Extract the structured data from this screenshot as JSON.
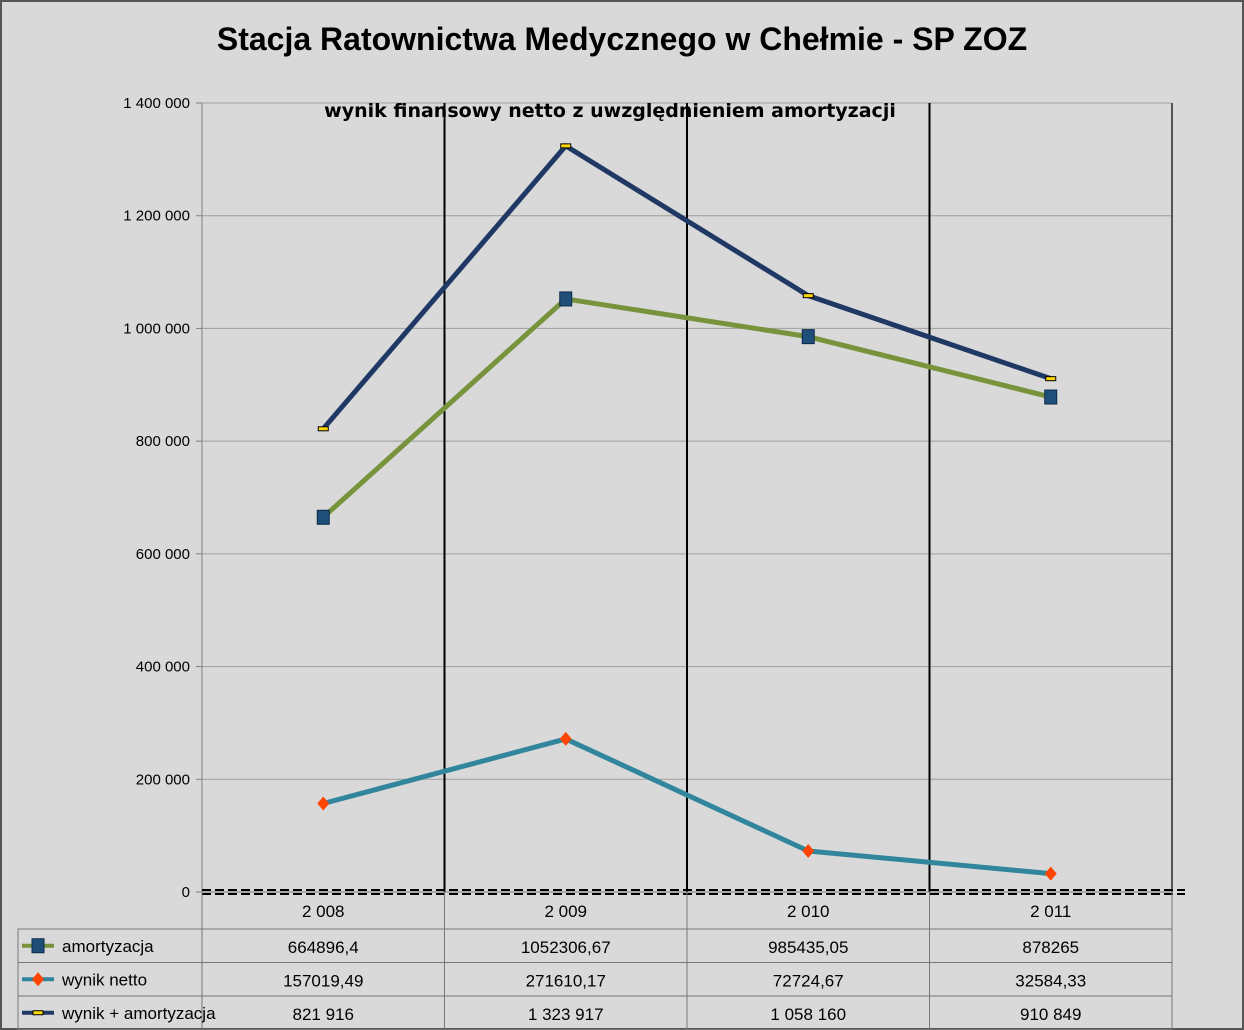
{
  "chart_data": {
    "type": "line",
    "title": "Stacja Ratownictwa  Medycznego  w Chełmie - SP ZOZ",
    "subtitle": "wynik finansowy netto z uwzględnieniem amortyzacji",
    "categories": [
      "2 008",
      "2 009",
      "2 010",
      "2 011"
    ],
    "ylim": [
      0,
      1400000
    ],
    "y_ticks": [
      "0",
      "200 000",
      "400 000",
      "600 000",
      "800 000",
      "1 000 000",
      "1 200 000",
      "1 400 000"
    ],
    "y_tick_values": [
      0,
      200000,
      400000,
      600000,
      800000,
      1000000,
      1200000,
      1400000
    ],
    "grid": true,
    "legend": "data-table-bottom",
    "series": [
      {
        "name": "amortyzacja",
        "values": [
          664896.4,
          1052306.67,
          985435.05,
          878265
        ],
        "labels": [
          "664896,4",
          "1052306,67",
          "985435,05",
          "878265"
        ],
        "color": "#77933c",
        "marker": "square",
        "marker_color": "#1f4e79"
      },
      {
        "name": "wynik netto",
        "values": [
          157019.49,
          271610.17,
          72724.67,
          32584.33
        ],
        "labels": [
          "157019,49",
          "271610,17",
          "72724,67",
          "32584,33"
        ],
        "color": "#31859c",
        "marker": "diamond",
        "marker_color": "#ff4500"
      },
      {
        "name": "wynik + amortyzacja",
        "values": [
          821916,
          1323917,
          1058160,
          910849
        ],
        "labels": [
          "821 916",
          "1 323 917",
          "1 058 160",
          "910 849"
        ],
        "color": "#1f3864",
        "marker": "dash",
        "marker_color": "#ffd700"
      }
    ]
  }
}
